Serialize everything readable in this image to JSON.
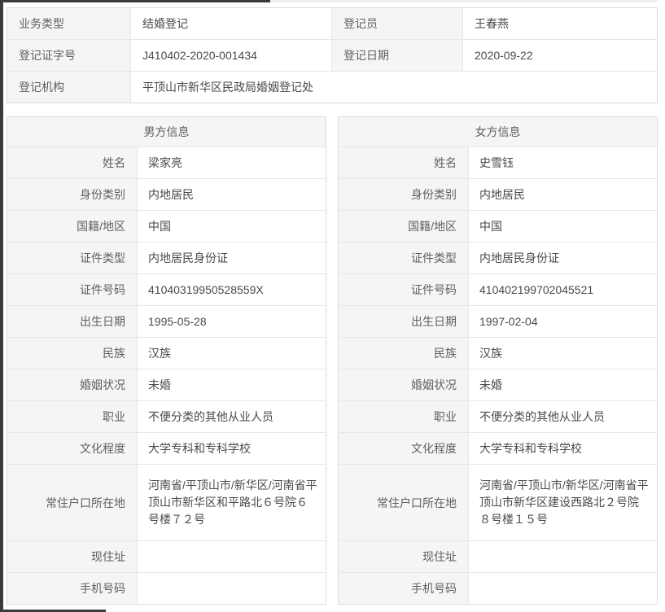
{
  "colors": {
    "label_bg": "#f5f5f6",
    "cell_border": "#e6e6e8",
    "outer_border": "#dcdcde",
    "label_text": "#5f5f5f",
    "value_text": "#4a4a4a",
    "crop_edge": "#3a3a3a"
  },
  "summary": {
    "row1": {
      "l1": "业务类型",
      "v1": "结婚登记",
      "l2": "登记员",
      "v2": "王春燕"
    },
    "row2": {
      "l1": "登记证字号",
      "v1": "J410402-2020-001434",
      "l2": "登记日期",
      "v2": "2020-09-22"
    },
    "row3": {
      "l": "登记机构",
      "v": "平顶山市新华区民政局婚姻登记处"
    }
  },
  "male": {
    "title": "男方信息",
    "fields": [
      {
        "label": "姓名",
        "value": "梁家亮"
      },
      {
        "label": "身份类别",
        "value": "内地居民"
      },
      {
        "label": "国籍/地区",
        "value": "中国"
      },
      {
        "label": "证件类型",
        "value": "内地居民身份证"
      },
      {
        "label": "证件号码",
        "value": "41040319950528559X"
      },
      {
        "label": "出生日期",
        "value": "1995-05-28"
      },
      {
        "label": "民族",
        "value": "汉族"
      },
      {
        "label": "婚姻状况",
        "value": "未婚"
      },
      {
        "label": "职业",
        "value": "不便分类的其他从业人员"
      },
      {
        "label": "文化程度",
        "value": "大学专科和专科学校"
      },
      {
        "label": "常住户口所在地",
        "value": "河南省/平顶山市/新华区/河南省平顶山市新华区和平路北６号院６号楼７２号"
      },
      {
        "label": "现住址",
        "value": ""
      },
      {
        "label": "手机号码",
        "value": ""
      }
    ]
  },
  "female": {
    "title": "女方信息",
    "fields": [
      {
        "label": "姓名",
        "value": "史雪钰"
      },
      {
        "label": "身份类别",
        "value": "内地居民"
      },
      {
        "label": "国籍/地区",
        "value": "中国"
      },
      {
        "label": "证件类型",
        "value": "内地居民身份证"
      },
      {
        "label": "证件号码",
        "value": "410402199702045521"
      },
      {
        "label": "出生日期",
        "value": "1997-02-04"
      },
      {
        "label": "民族",
        "value": "汉族"
      },
      {
        "label": "婚姻状况",
        "value": "未婚"
      },
      {
        "label": "职业",
        "value": "不便分类的其他从业人员"
      },
      {
        "label": "文化程度",
        "value": "大学专科和专科学校"
      },
      {
        "label": "常住户口所在地",
        "value": "河南省/平顶山市/新华区/河南省平顶山市新华区建设西路北２号院８号楼１５号"
      },
      {
        "label": "现住址",
        "value": ""
      },
      {
        "label": "手机号码",
        "value": ""
      }
    ]
  }
}
